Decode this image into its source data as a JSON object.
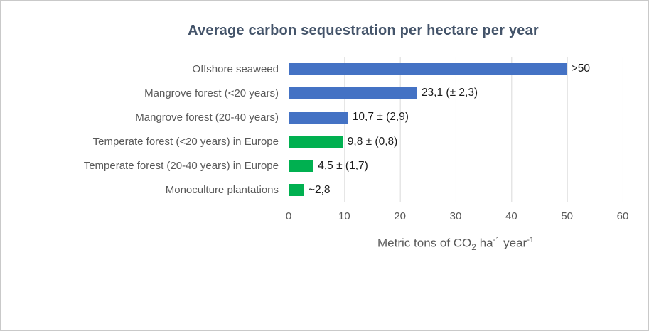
{
  "page": {
    "background": "#ffffff",
    "border_color": "#c9c9c9"
  },
  "chart_data": {
    "type": "bar",
    "orientation": "horizontal",
    "title": "Average carbon sequestration per hectare per year",
    "title_color": "#44546A",
    "xlabel_parts": {
      "prefix": "Metric tons of CO",
      "sub": "2",
      "unit1": " ha",
      "sup1": "-1",
      "unit2": " year",
      "sup2": "-1"
    },
    "xlim": [
      0,
      60
    ],
    "xticks": [
      "0",
      "10",
      "20",
      "30",
      "40",
      "50",
      "60"
    ],
    "grid": "vertical-gridlines-on",
    "gridline_color": "#d9d9d9",
    "legend": "none",
    "colors": {
      "blue": "#4472C4",
      "green": "#00B050"
    },
    "rows": [
      {
        "label": "Offshore seaweed",
        "value": 50,
        "value_label": ">50",
        "color": "blue"
      },
      {
        "label": "Mangrove forest (<20 years)",
        "value": 23.1,
        "value_label": "23,1 (± 2,3)",
        "color": "blue"
      },
      {
        "label": "Mangrove forest (20-40 years)",
        "value": 10.7,
        "value_label": "10,7 ± (2,9)",
        "color": "blue"
      },
      {
        "label": "Temperate forest (<20 years) in Europe",
        "value": 9.8,
        "value_label": "9,8 ± (0,8)",
        "color": "green"
      },
      {
        "label": "Temperate forest (20-40 years) in Europe",
        "value": 4.5,
        "value_label": "4,5 ± (1,7)",
        "color": "green"
      },
      {
        "label": "Monoculture plantations",
        "value": 2.8,
        "value_label": "~2,8",
        "color": "green"
      }
    ]
  }
}
